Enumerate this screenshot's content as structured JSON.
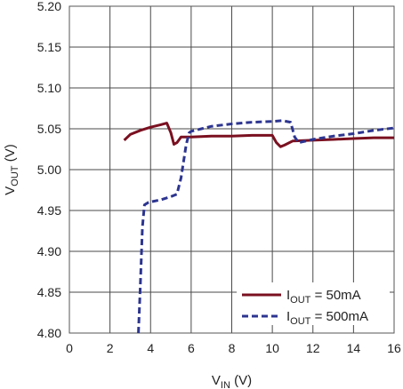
{
  "chart_data": {
    "type": "line",
    "xlabel": {
      "main": "V",
      "sub": "IN",
      "unit": " (V)"
    },
    "ylabel": {
      "main": "V",
      "sub": "OUT",
      "unit": " (V)"
    },
    "xlim": [
      0,
      16
    ],
    "ylim": [
      4.8,
      5.2
    ],
    "x_ticks": [
      "0",
      "2",
      "4",
      "6",
      "8",
      "10",
      "12",
      "14",
      "16"
    ],
    "y_ticks": [
      "4.80",
      "4.85",
      "4.90",
      "4.95",
      "5.00",
      "5.05",
      "5.10",
      "5.15",
      "5.20"
    ],
    "grid": true,
    "legend_position": "bottom-right",
    "series": [
      {
        "legend_main": "I",
        "legend_sub": "OUT",
        "legend_value": " = 50mA",
        "color": "#7a1020",
        "style": "solid",
        "x": [
          2.7,
          3.0,
          3.5,
          4.0,
          4.5,
          4.8,
          5.0,
          5.15,
          5.3,
          5.5,
          6.0,
          7.0,
          8.0,
          9.0,
          10.0,
          10.2,
          10.4,
          10.6,
          11.0,
          12.0,
          13.0,
          14.0,
          15.0,
          16.0
        ],
        "y": [
          5.036,
          5.043,
          5.048,
          5.052,
          5.055,
          5.057,
          5.045,
          5.031,
          5.033,
          5.04,
          5.04,
          5.041,
          5.041,
          5.042,
          5.042,
          5.033,
          5.028,
          5.03,
          5.035,
          5.036,
          5.037,
          5.038,
          5.039,
          5.039
        ]
      },
      {
        "legend_main": "I",
        "legend_sub": "OUT",
        "legend_value": " = 500mA",
        "color": "#2d3590",
        "style": "dashed",
        "x": [
          3.4,
          3.5,
          3.6,
          3.7,
          3.9,
          4.5,
          5.0,
          5.3,
          5.5,
          5.75,
          5.9,
          6.0,
          7.0,
          8.0,
          9.0,
          10.0,
          10.5,
          10.9,
          11.1,
          11.3,
          12.0,
          13.0,
          14.0,
          15.0,
          16.0
        ],
        "y": [
          4.8,
          4.86,
          4.93,
          4.957,
          4.96,
          4.963,
          4.967,
          4.97,
          4.99,
          5.03,
          5.045,
          5.047,
          5.053,
          5.056,
          5.058,
          5.059,
          5.06,
          5.058,
          5.04,
          5.033,
          5.037,
          5.041,
          5.044,
          5.048,
          5.051
        ]
      }
    ]
  }
}
